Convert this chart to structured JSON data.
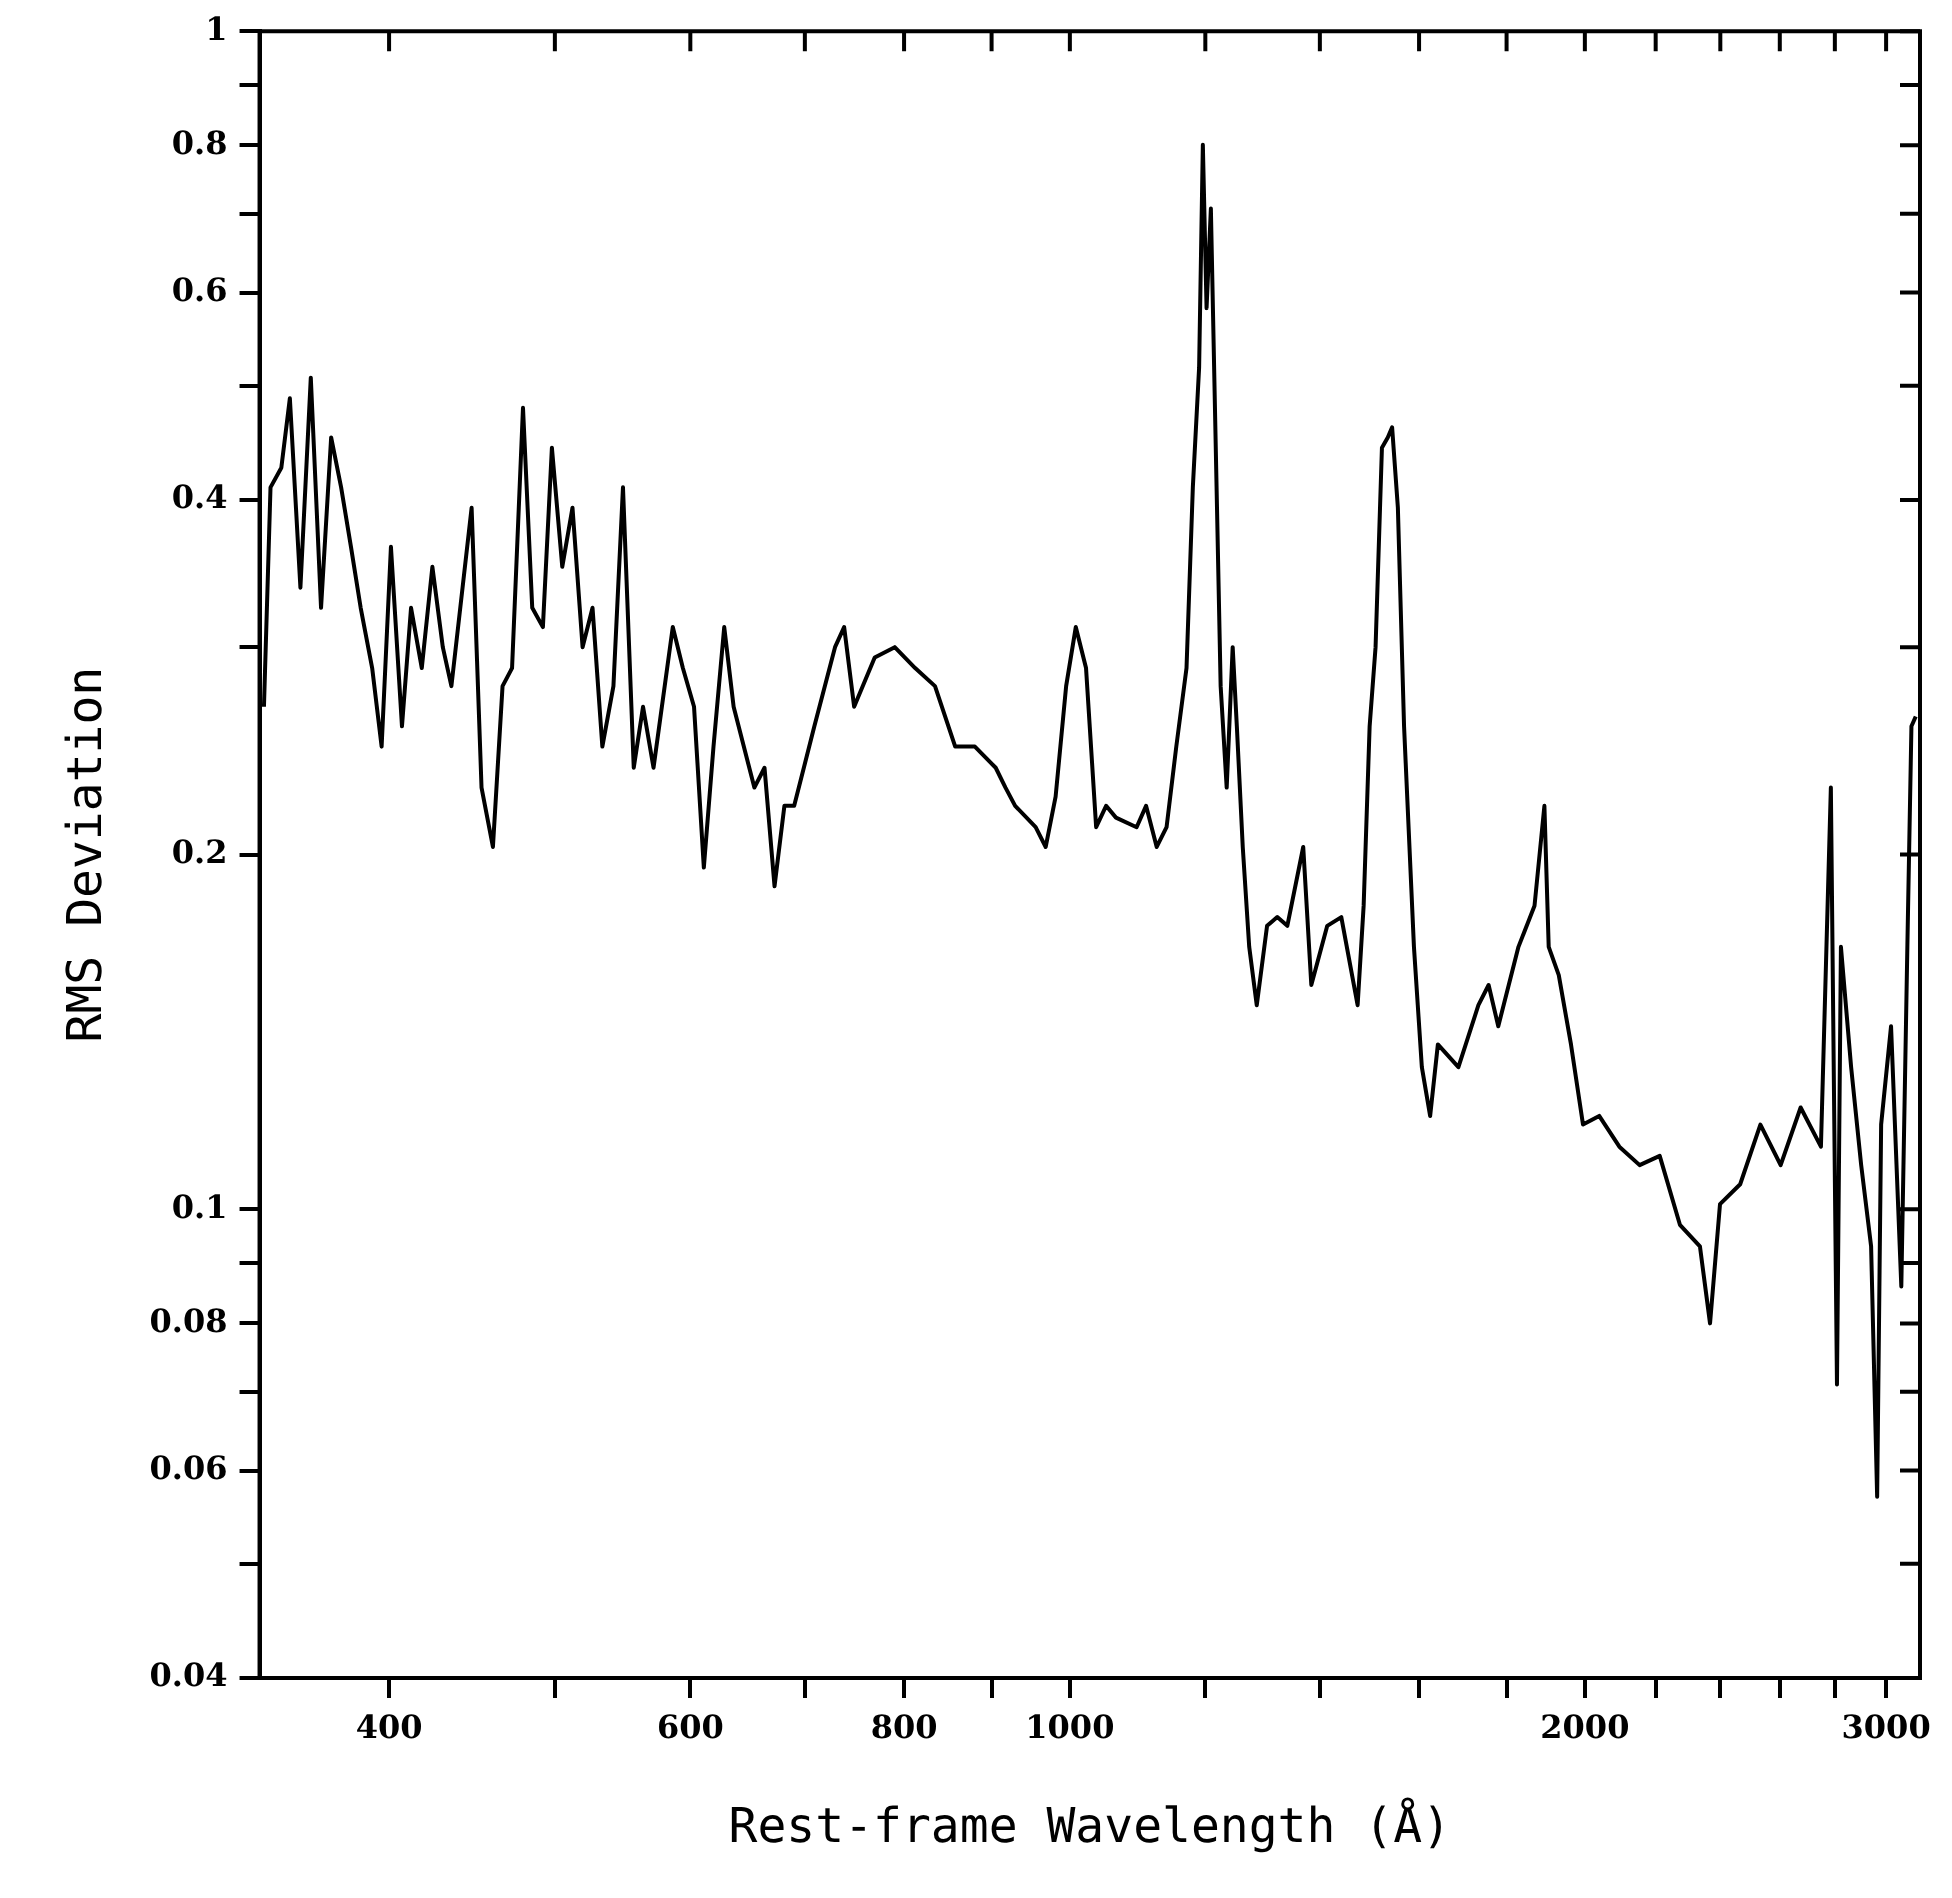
{
  "chart_data": {
    "type": "line",
    "xlabel": "Rest-frame Wavelength (Å)",
    "ylabel": "RMS Deviation",
    "log": "xy",
    "xlim": [
      336,
      3140
    ],
    "ylim": [
      0.04,
      1
    ],
    "xticks": [
      400,
      {
        "value": 500,
        "label": null
      },
      600,
      {
        "value": 700,
        "label": null
      },
      800,
      {
        "value": 900,
        "label": null
      },
      1000,
      {
        "value": 1200,
        "label": null
      },
      {
        "value": 1400,
        "label": null
      },
      {
        "value": 1600,
        "label": null
      },
      {
        "value": 1800,
        "label": null
      },
      2000,
      {
        "value": 2200,
        "label": null
      },
      {
        "value": 2400,
        "label": null
      },
      {
        "value": 2600,
        "label": null
      },
      {
        "value": 2800,
        "label": null
      },
      3000
    ],
    "yticks": [
      0.04,
      {
        "value": 0.05,
        "label": null
      },
      0.06,
      {
        "value": 0.07,
        "label": null
      },
      0.08,
      {
        "value": 0.09,
        "label": null
      },
      0.1,
      0.2,
      {
        "value": 0.3,
        "label": null
      },
      0.4,
      {
        "value": 0.5,
        "label": null
      },
      0.6,
      {
        "value": 0.7,
        "label": null
      },
      0.8,
      {
        "value": 0.9,
        "label": null
      },
      1
    ],
    "x": [
      338,
      341,
      346,
      350,
      355,
      360,
      365,
      370,
      375,
      380,
      385,
      391,
      396,
      401,
      407,
      412,
      418,
      424,
      430,
      435,
      447,
      453,
      460,
      466,
      472,
      479,
      485,
      492,
      498,
      505,
      512,
      519,
      526,
      533,
      541,
      548,
      556,
      563,
      571,
      586,
      594,
      603,
      611,
      619,
      628,
      636,
      654,
      663,
      672,
      681,
      690,
      709,
      729,
      738,
      748,
      769,
      790,
      812,
      834,
      857,
      880,
      905,
      917,
      929,
      955,
      968,
      981,
      995,
      1008,
      1022,
      1036,
      1050,
      1064,
      1094,
      1108,
      1124,
      1139,
      1154,
      1170,
      1180,
      1190,
      1196,
      1202,
      1209,
      1219,
      1225,
      1235,
      1245,
      1252,
      1262,
      1273,
      1286,
      1304,
      1322,
      1340,
      1369,
      1384,
      1414,
      1441,
      1473,
      1485,
      1497,
      1509,
      1522,
      1534,
      1543,
      1555,
      1568,
      1589,
      1606,
      1624,
      1641,
      1687,
      1733,
      1757,
      1780,
      1829,
      1869,
      1894,
      1905,
      1931,
      1963,
      1995,
      2039,
      2095,
      2153,
      2212,
      2273,
      2335,
      2367,
      2399,
      2465,
      2533,
      2603,
      2674,
      2748,
      2785,
      2808,
      2823,
      2862,
      2901,
      2940,
      2964,
      2980,
      3020,
      3062,
      3087,
      3104,
      3122
    ],
    "series": [
      {
        "color": "#000000",
        "values": [
          0.267,
          0.41,
          0.426,
          0.488,
          0.337,
          0.508,
          0.324,
          0.452,
          0.41,
          0.365,
          0.324,
          0.288,
          0.247,
          0.365,
          0.257,
          0.324,
          0.288,
          0.351,
          0.3,
          0.278,
          0.394,
          0.228,
          0.203,
          0.278,
          0.288,
          0.479,
          0.324,
          0.312,
          0.443,
          0.351,
          0.394,
          0.3,
          0.324,
          0.247,
          0.278,
          0.41,
          0.237,
          0.267,
          0.237,
          0.312,
          0.288,
          0.267,
          0.195,
          0.247,
          0.312,
          0.267,
          0.228,
          0.237,
          0.188,
          0.22,
          0.22,
          0.257,
          0.3,
          0.312,
          0.267,
          0.294,
          0.3,
          0.288,
          0.278,
          0.247,
          0.247,
          0.237,
          0.228,
          0.22,
          0.211,
          0.203,
          0.224,
          0.278,
          0.312,
          0.288,
          0.211,
          0.22,
          0.215,
          0.211,
          0.22,
          0.203,
          0.211,
          0.247,
          0.288,
          0.41,
          0.518,
          0.801,
          0.582,
          0.707,
          0.394,
          0.278,
          0.228,
          0.3,
          0.257,
          0.203,
          0.167,
          0.149,
          0.174,
          0.177,
          0.174,
          0.203,
          0.155,
          0.174,
          0.177,
          0.149,
          0.181,
          0.257,
          0.3,
          0.443,
          0.452,
          0.461,
          0.394,
          0.257,
          0.167,
          0.132,
          0.12,
          0.138,
          0.132,
          0.149,
          0.155,
          0.143,
          0.167,
          0.181,
          0.22,
          0.167,
          0.158,
          0.138,
          0.118,
          0.12,
          0.113,
          0.109,
          0.111,
          0.097,
          0.093,
          0.08,
          0.101,
          0.105,
          0.118,
          0.109,
          0.122,
          0.113,
          0.228,
          0.071,
          0.167,
          0.132,
          0.109,
          0.093,
          0.057,
          0.118,
          0.143,
          0.086,
          0.167,
          0.257,
          0.262
        ]
      }
    ]
  }
}
